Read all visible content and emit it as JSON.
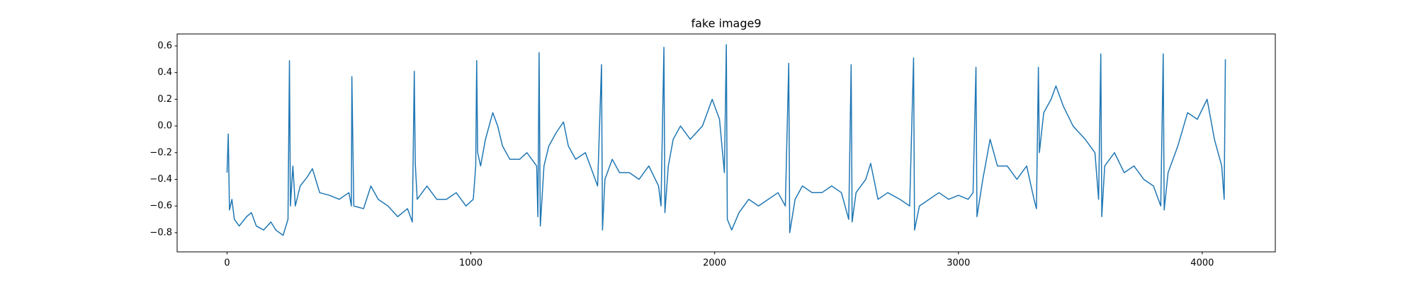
{
  "chart_data": {
    "type": "line",
    "title": "fake image9",
    "x": [
      0,
      5,
      10,
      20,
      30,
      50,
      80,
      100,
      120,
      150,
      180,
      200,
      230,
      250,
      256,
      260,
      270,
      280,
      300,
      330,
      350,
      380,
      420,
      460,
      500,
      510,
      512,
      516,
      520,
      560,
      590,
      620,
      660,
      700,
      740,
      760,
      768,
      772,
      780,
      820,
      860,
      900,
      940,
      980,
      1010,
      1020,
      1024,
      1028,
      1040,
      1060,
      1090,
      1110,
      1130,
      1160,
      1200,
      1230,
      1270,
      1275,
      1280,
      1285,
      1300,
      1320,
      1350,
      1380,
      1400,
      1430,
      1470,
      1500,
      1520,
      1536,
      1540,
      1550,
      1580,
      1610,
      1650,
      1690,
      1730,
      1770,
      1780,
      1792,
      1796,
      1810,
      1830,
      1860,
      1900,
      1950,
      1990,
      2020,
      2040,
      2048,
      2052,
      2070,
      2100,
      2140,
      2180,
      2220,
      2260,
      2290,
      2304,
      2308,
      2330,
      2360,
      2400,
      2440,
      2480,
      2520,
      2550,
      2560,
      2564,
      2580,
      2620,
      2640,
      2670,
      2710,
      2760,
      2800,
      2816,
      2820,
      2840,
      2880,
      2920,
      2960,
      3000,
      3040,
      3060,
      3072,
      3076,
      3100,
      3130,
      3160,
      3200,
      3240,
      3280,
      3310,
      3320,
      3328,
      3332,
      3350,
      3380,
      3400,
      3430,
      3470,
      3520,
      3560,
      3575,
      3584,
      3588,
      3600,
      3640,
      3680,
      3720,
      3760,
      3800,
      3830,
      3840,
      3844,
      3860,
      3900,
      3940,
      3980,
      4020,
      4050,
      4080,
      4090,
      4095
    ],
    "series": [
      {
        "color": "#1f77b4",
        "values": [
          -0.35,
          -0.06,
          -0.63,
          -0.55,
          -0.7,
          -0.75,
          -0.68,
          -0.65,
          -0.75,
          -0.78,
          -0.72,
          -0.78,
          -0.82,
          -0.7,
          0.49,
          -0.6,
          -0.3,
          -0.6,
          -0.45,
          -0.38,
          -0.32,
          -0.5,
          -0.52,
          -0.55,
          -0.5,
          -0.6,
          0.37,
          -0.12,
          -0.6,
          -0.62,
          -0.45,
          -0.55,
          -0.6,
          -0.68,
          -0.62,
          -0.72,
          0.41,
          -0.28,
          -0.55,
          -0.45,
          -0.55,
          -0.55,
          -0.5,
          -0.6,
          -0.55,
          -0.3,
          0.49,
          -0.2,
          -0.3,
          -0.1,
          0.1,
          0.0,
          -0.15,
          -0.25,
          -0.25,
          -0.2,
          -0.3,
          -0.68,
          0.55,
          -0.75,
          -0.3,
          -0.15,
          -0.05,
          0.03,
          -0.15,
          -0.25,
          -0.2,
          -0.35,
          -0.45,
          0.46,
          -0.78,
          -0.4,
          -0.25,
          -0.35,
          -0.35,
          -0.4,
          -0.3,
          -0.45,
          -0.6,
          0.59,
          -0.65,
          -0.3,
          -0.1,
          0.0,
          -0.1,
          0.0,
          0.2,
          0.05,
          -0.35,
          0.61,
          -0.7,
          -0.78,
          -0.65,
          -0.55,
          -0.6,
          -0.55,
          -0.5,
          -0.6,
          0.47,
          -0.8,
          -0.55,
          -0.45,
          -0.5,
          -0.5,
          -0.45,
          -0.5,
          -0.7,
          0.46,
          -0.72,
          -0.5,
          -0.4,
          -0.28,
          -0.55,
          -0.5,
          -0.55,
          -0.6,
          0.51,
          -0.78,
          -0.6,
          -0.55,
          -0.5,
          -0.55,
          -0.52,
          -0.55,
          -0.5,
          0.44,
          -0.68,
          -0.4,
          -0.1,
          -0.3,
          -0.3,
          -0.4,
          -0.3,
          -0.55,
          -0.62,
          0.44,
          -0.2,
          0.1,
          0.2,
          0.3,
          0.15,
          0.0,
          -0.1,
          -0.2,
          -0.55,
          0.54,
          -0.68,
          -0.3,
          -0.2,
          -0.35,
          -0.3,
          -0.4,
          -0.45,
          -0.6,
          0.54,
          -0.63,
          -0.35,
          -0.15,
          0.1,
          0.05,
          0.2,
          -0.1,
          -0.3,
          -0.55,
          0.5
        ]
      }
    ],
    "xlim": [
      -204.75,
      4299.75
    ],
    "ylim": [
      -0.944,
      0.69
    ],
    "xticks": [
      0,
      1000,
      2000,
      3000,
      4000
    ],
    "yticks": [
      {
        "value": -0.8,
        "label": "−0.8"
      },
      {
        "value": -0.6,
        "label": "−0.6"
      },
      {
        "value": -0.4,
        "label": "−0.4"
      },
      {
        "value": -0.2,
        "label": "−0.2"
      },
      {
        "value": 0,
        "label": "0.0"
      },
      0.2,
      0.4,
      0.6
    ]
  }
}
